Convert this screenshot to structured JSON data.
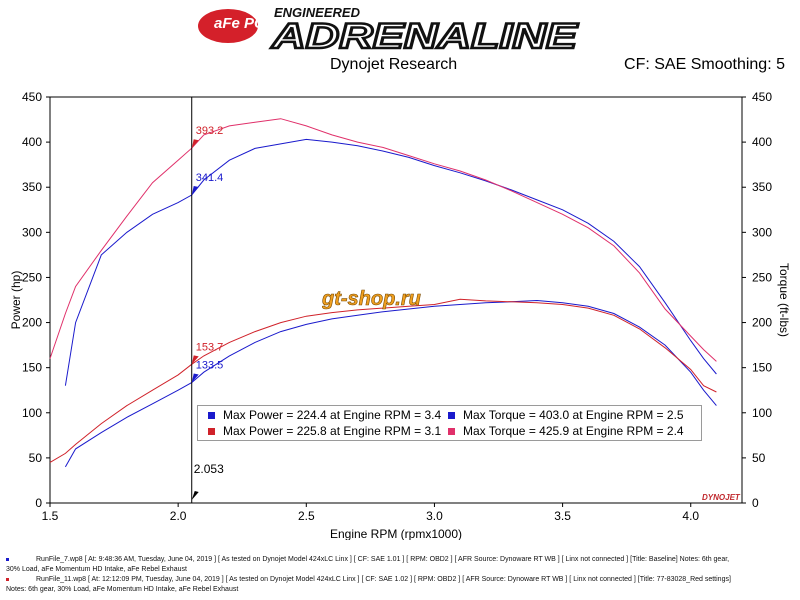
{
  "header": {
    "logo_badge": "aFe POWER",
    "logo_small": "ENGINEERED",
    "logo_big": "ADRENALINE",
    "title": "Dynojet Research",
    "cf_smoothing": "CF: SAE Smoothing: 5"
  },
  "watermark": "gt-shop.ru",
  "brand_mark": "DYNOJET",
  "legend": {
    "items": [
      {
        "text": "Max Power = 224.4 at Engine RPM = 3.4",
        "color": "#1a1acc"
      },
      {
        "text": "Max Torque = 403.0 at Engine RPM = 2.5",
        "color": "#1a1acc"
      },
      {
        "text": "Max Power = 225.8 at Engine RPM = 3.1",
        "color": "#d0222a"
      },
      {
        "text": "Max Torque = 425.9 at Engine RPM = 2.4",
        "color": "#e0306a"
      }
    ]
  },
  "footer": {
    "line1": "RunFile_7.wp8 [ At: 9:48:36 AM, Tuesday, June 04, 2019 ] [ As tested on Dynojet Model 424xLC Linx ] [ CF: SAE 1.01 ] [ RPM: OBD2 ] [ AFR Source: Dynoware RT WB ] [ Linx not connected ] [Title: Baseline]  Notes: 6th gear,",
    "line1b": "30% Load, aFe Momentum HD Intake, aFe Rebel Exhaust",
    "line2": "RunFile_11.wp8 [ At: 12:12:09 PM, Tuesday, June 04, 2019 ] [ As tested on Dynojet Model 424xLC Linx ] [ CF: SAE 1.02 ] [ RPM: OBD2 ] [ AFR Source: Dynoware RT WB ] [ Linx not connected ] [Title: 77-83028_Red settings]",
    "line2b": "Notes: 6th gear, 30% Load, aFe Momentum HD Intake, aFe Rebel Exhaust"
  },
  "chart_data": {
    "type": "line",
    "xlabel": "Engine RPM (rpmx1000)",
    "ylabel": "Power (hp)",
    "y2label": "Torque (ft-lbs)",
    "xlim": [
      1.5,
      4.2
    ],
    "ylim": [
      0,
      450
    ],
    "y2lim": [
      0,
      450
    ],
    "xticks": [
      "1.5",
      "2.0",
      "2.5",
      "3.0",
      "3.5",
      "4.0"
    ],
    "yticks": [
      "0",
      "50",
      "100",
      "150",
      "200",
      "250",
      "300",
      "350",
      "400",
      "450"
    ],
    "grid": false,
    "cursor": {
      "x": 2.053,
      "label": "2.053"
    },
    "cursor_labels": [
      {
        "x": 2.053,
        "y": 393.2,
        "label": "393.2",
        "color": "#d0222a"
      },
      {
        "x": 2.053,
        "y": 341.4,
        "label": "341.4",
        "color": "#1a1acc"
      },
      {
        "x": 2.053,
        "y": 153.7,
        "label": "153.7",
        "color": "#d0222a"
      },
      {
        "x": 2.053,
        "y": 133.5,
        "label": "133.5",
        "color": "#1a1acc"
      }
    ],
    "series": [
      {
        "color": "#1a1acc",
        "x": [
          1.56,
          1.6,
          1.7,
          1.8,
          1.9,
          2.0,
          2.053,
          2.1,
          2.2,
          2.3,
          2.4,
          2.5,
          2.6,
          2.7,
          2.8,
          2.9,
          3.0,
          3.1,
          3.2,
          3.3,
          3.4,
          3.5,
          3.6,
          3.7,
          3.8,
          3.9,
          4.0,
          4.05,
          4.1
        ],
        "y": [
          40,
          60,
          78,
          95,
          110,
          125,
          133.5,
          145,
          163,
          178,
          190,
          198,
          204,
          208,
          212,
          215,
          218,
          220,
          222,
          223,
          224.4,
          222,
          218,
          210,
          195,
          175,
          145,
          125,
          108
        ]
      },
      {
        "color": "#d0222a",
        "x": [
          1.5,
          1.56,
          1.6,
          1.7,
          1.8,
          1.9,
          2.0,
          2.053,
          2.1,
          2.2,
          2.3,
          2.4,
          2.5,
          2.6,
          2.7,
          2.8,
          2.9,
          3.0,
          3.1,
          3.2,
          3.3,
          3.4,
          3.5,
          3.6,
          3.7,
          3.8,
          3.9,
          4.0,
          4.05,
          4.1
        ],
        "y": [
          45,
          55,
          65,
          88,
          108,
          125,
          142,
          153.7,
          163,
          178,
          190,
          200,
          207,
          211,
          214,
          216,
          218,
          220,
          225.8,
          224,
          223,
          222,
          220,
          216,
          208,
          193,
          172,
          148,
          130,
          123
        ]
      },
      {
        "color": "#1a1acc",
        "x": [
          1.56,
          1.6,
          1.7,
          1.8,
          1.9,
          2.0,
          2.053,
          2.1,
          2.2,
          2.3,
          2.4,
          2.5,
          2.6,
          2.7,
          2.8,
          2.9,
          3.0,
          3.1,
          3.2,
          3.3,
          3.4,
          3.5,
          3.6,
          3.7,
          3.8,
          3.9,
          4.0,
          4.05,
          4.1
        ],
        "y": [
          130,
          200,
          275,
          300,
          320,
          333,
          341.4,
          358,
          380,
          393,
          398,
          403,
          400,
          396,
          390,
          383,
          374,
          366,
          357,
          347,
          336,
          325,
          310,
          290,
          262,
          222,
          180,
          160,
          143
        ]
      },
      {
        "color": "#e0306a",
        "x": [
          1.5,
          1.56,
          1.6,
          1.7,
          1.8,
          1.9,
          2.0,
          2.053,
          2.1,
          2.2,
          2.3,
          2.4,
          2.5,
          2.6,
          2.7,
          2.8,
          2.9,
          3.0,
          3.1,
          3.2,
          3.3,
          3.4,
          3.5,
          3.6,
          3.7,
          3.8,
          3.9,
          4.0,
          4.05,
          4.1
        ],
        "y": [
          160,
          210,
          240,
          280,
          318,
          355,
          380,
          393.2,
          408,
          418,
          422,
          425.9,
          418,
          408,
          400,
          394,
          385,
          376,
          368,
          358,
          346,
          333,
          320,
          305,
          285,
          255,
          215,
          185,
          170,
          157
        ]
      }
    ]
  }
}
